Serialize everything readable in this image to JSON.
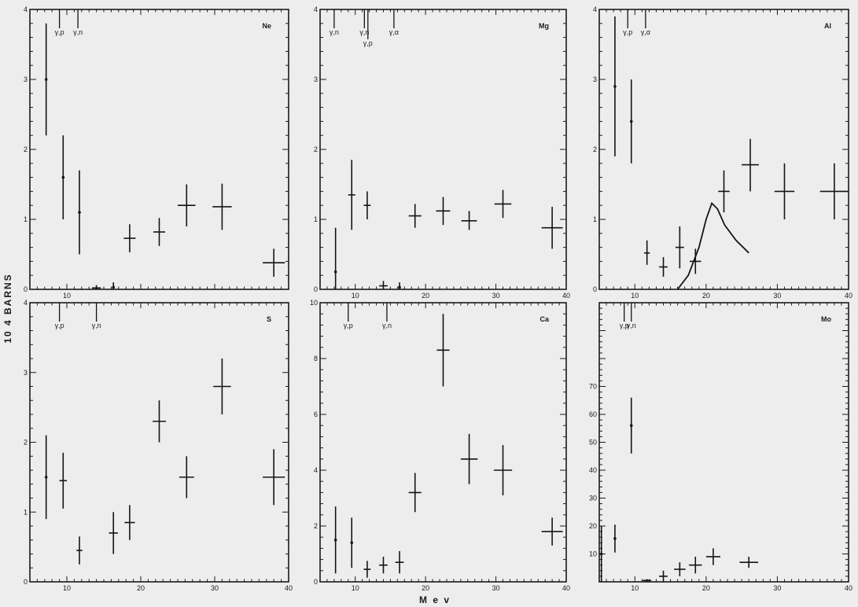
{
  "ylabel": "10 4 BARNS",
  "xlabel": "M e v",
  "chart_data": [
    {
      "type": "scatter",
      "element": "Ne",
      "xlim": [
        5,
        40
      ],
      "ylim": [
        0,
        4
      ],
      "yticks": [
        0,
        1,
        2,
        3,
        4
      ],
      "yticklabels": [
        "0",
        "1",
        "2",
        "3",
        "4"
      ],
      "xticks": [
        10,
        20,
        30,
        40
      ],
      "xticklabels": [
        "10",
        "",
        "",
        ""
      ],
      "points": [
        {
          "x": 7.2,
          "y": 3.0,
          "lo": 2.2,
          "hi": 3.8,
          "hw": 0
        },
        {
          "x": 9.5,
          "y": 1.6,
          "lo": 1.0,
          "hi": 2.2,
          "hw": 0
        },
        {
          "x": 11.7,
          "y": 1.1,
          "lo": 0.5,
          "hi": 1.7,
          "hw": 0
        },
        {
          "x": 14.0,
          "y": 0.02,
          "lo": 0.0,
          "hi": 0.06,
          "hw": 0.6
        },
        {
          "x": 16.3,
          "y": 0.03,
          "lo": 0.0,
          "hi": 0.1,
          "hw": 0
        },
        {
          "x": 18.5,
          "y": 0.73,
          "lo": 0.53,
          "hi": 0.93,
          "hw": 0.8
        },
        {
          "x": 22.5,
          "y": 0.82,
          "lo": 0.62,
          "hi": 1.02,
          "hw": 0.8
        },
        {
          "x": 26.2,
          "y": 1.2,
          "lo": 0.9,
          "hi": 1.5,
          "hw": 1.2
        },
        {
          "x": 31.0,
          "y": 1.18,
          "lo": 0.85,
          "hi": 1.51,
          "hw": 1.3
        },
        {
          "x": 38.0,
          "y": 0.38,
          "lo": 0.18,
          "hi": 0.58,
          "hw": 1.5
        }
      ],
      "thresholds": [
        {
          "x": 9.0,
          "label": "γ,p"
        },
        {
          "x": 11.5,
          "label": "γ,n"
        }
      ],
      "curve": []
    },
    {
      "type": "scatter",
      "element": "Mg",
      "xlim": [
        5,
        40
      ],
      "ylim": [
        0,
        4
      ],
      "yticks": [
        0,
        1,
        2,
        3,
        4
      ],
      "yticklabels": [
        "0",
        "1",
        "2",
        "3",
        "4"
      ],
      "xticks": [
        10,
        20,
        30,
        40
      ],
      "xticklabels": [
        "10",
        "20",
        "30",
        "40"
      ],
      "points": [
        {
          "x": 7.2,
          "y": 0.25,
          "lo": 0.0,
          "hi": 0.88,
          "hw": 0
        },
        {
          "x": 9.5,
          "y": 1.35,
          "lo": 0.85,
          "hi": 1.85,
          "hw": 0.5
        },
        {
          "x": 11.7,
          "y": 1.2,
          "lo": 1.0,
          "hi": 1.4,
          "hw": 0.5
        },
        {
          "x": 14.0,
          "y": 0.05,
          "lo": 0.0,
          "hi": 0.12,
          "hw": 0.6
        },
        {
          "x": 16.3,
          "y": 0.03,
          "lo": 0.0,
          "hi": 0.1,
          "hw": 0
        },
        {
          "x": 18.5,
          "y": 1.05,
          "lo": 0.88,
          "hi": 1.22,
          "hw": 0.9
        },
        {
          "x": 22.5,
          "y": 1.12,
          "lo": 0.92,
          "hi": 1.32,
          "hw": 1.0
        },
        {
          "x": 26.2,
          "y": 0.98,
          "lo": 0.85,
          "hi": 1.12,
          "hw": 1.1
        },
        {
          "x": 31.0,
          "y": 1.22,
          "lo": 1.02,
          "hi": 1.42,
          "hw": 1.2
        },
        {
          "x": 38.0,
          "y": 0.88,
          "lo": 0.58,
          "hi": 1.18,
          "hw": 1.5
        }
      ],
      "thresholds": [
        {
          "x": 7.0,
          "label": "γ,n"
        },
        {
          "x": 11.3,
          "label": "γ,n"
        },
        {
          "x": 11.8,
          "label": "γ,p"
        },
        {
          "x": 15.5,
          "label": "γ,α"
        }
      ],
      "curve": []
    },
    {
      "type": "scatter",
      "element": "Al",
      "xlim": [
        5,
        40
      ],
      "ylim": [
        0,
        4
      ],
      "yticks": [
        0,
        1,
        2,
        3,
        4
      ],
      "yticklabels": [
        "0",
        "1",
        "2",
        "3",
        "4"
      ],
      "xticks": [
        10,
        20,
        30,
        40
      ],
      "xticklabels": [
        "10",
        "20",
        "30",
        "40"
      ],
      "points": [
        {
          "x": 7.2,
          "y": 2.9,
          "lo": 1.9,
          "hi": 3.9,
          "hw": 0
        },
        {
          "x": 9.5,
          "y": 2.4,
          "lo": 1.8,
          "hi": 3.0,
          "hw": 0
        },
        {
          "x": 11.7,
          "y": 0.52,
          "lo": 0.35,
          "hi": 0.7,
          "hw": 0.4
        },
        {
          "x": 14.0,
          "y": 0.32,
          "lo": 0.18,
          "hi": 0.46,
          "hw": 0.6
        },
        {
          "x": 16.3,
          "y": 0.6,
          "lo": 0.3,
          "hi": 0.9,
          "hw": 0.6
        },
        {
          "x": 18.5,
          "y": 0.4,
          "lo": 0.22,
          "hi": 0.58,
          "hw": 0.8
        },
        {
          "x": 22.5,
          "y": 1.4,
          "lo": 1.1,
          "hi": 1.7,
          "hw": 0.8
        },
        {
          "x": 26.2,
          "y": 1.78,
          "lo": 1.4,
          "hi": 2.15,
          "hw": 1.2
        },
        {
          "x": 31.0,
          "y": 1.4,
          "lo": 1.0,
          "hi": 1.8,
          "hw": 1.4
        },
        {
          "x": 38.0,
          "y": 1.4,
          "lo": 1.0,
          "hi": 1.8,
          "hw": 2.0
        }
      ],
      "thresholds": [
        {
          "x": 9.0,
          "label": "γ,p"
        },
        {
          "x": 11.5,
          "label": "γ,α"
        }
      ],
      "curve": [
        [
          16.0,
          0.0
        ],
        [
          17.5,
          0.2
        ],
        [
          19.0,
          0.6
        ],
        [
          20.0,
          1.0
        ],
        [
          20.8,
          1.23
        ],
        [
          21.6,
          1.15
        ],
        [
          22.6,
          0.92
        ],
        [
          24.2,
          0.7
        ],
        [
          26.0,
          0.52
        ]
      ]
    },
    {
      "type": "scatter",
      "element": "S",
      "xlim": [
        5,
        40
      ],
      "ylim": [
        0,
        4
      ],
      "yticks": [
        0,
        1,
        2,
        3,
        4
      ],
      "yticklabels": [
        "0",
        "1",
        "2",
        "3",
        "4"
      ],
      "xticks": [
        10,
        20,
        30,
        40
      ],
      "xticklabels": [
        "10",
        "20",
        "30",
        "40"
      ],
      "points": [
        {
          "x": 7.2,
          "y": 1.5,
          "lo": 0.9,
          "hi": 2.1,
          "hw": 0
        },
        {
          "x": 9.5,
          "y": 1.45,
          "lo": 1.05,
          "hi": 1.85,
          "hw": 0.5
        },
        {
          "x": 11.7,
          "y": 0.45,
          "lo": 0.25,
          "hi": 0.65,
          "hw": 0.4
        },
        {
          "x": 16.3,
          "y": 0.7,
          "lo": 0.4,
          "hi": 1.0,
          "hw": 0.6
        },
        {
          "x": 18.5,
          "y": 0.85,
          "lo": 0.6,
          "hi": 1.1,
          "hw": 0.7
        },
        {
          "x": 22.5,
          "y": 2.3,
          "lo": 2.0,
          "hi": 2.6,
          "hw": 0.9
        },
        {
          "x": 26.2,
          "y": 1.5,
          "lo": 1.2,
          "hi": 1.8,
          "hw": 1.0
        },
        {
          "x": 31.0,
          "y": 2.8,
          "lo": 2.4,
          "hi": 3.2,
          "hw": 1.2
        },
        {
          "x": 38.0,
          "y": 1.5,
          "lo": 1.1,
          "hi": 1.9,
          "hw": 1.5
        }
      ],
      "thresholds": [
        {
          "x": 9.0,
          "label": "γ,p"
        },
        {
          "x": 14.0,
          "label": "γ,n"
        }
      ],
      "curve": []
    },
    {
      "type": "scatter",
      "element": "Ca",
      "xlim": [
        5,
        40
      ],
      "ylim": [
        0,
        10
      ],
      "yticks": [
        0,
        2,
        4,
        6,
        8,
        10
      ],
      "yticklabels": [
        "0",
        "2",
        "4",
        "6",
        "8",
        "10"
      ],
      "xticks": [
        10,
        20,
        30,
        40
      ],
      "xticklabels": [
        "10",
        "20",
        "30",
        "40"
      ],
      "points": [
        {
          "x": 7.2,
          "y": 1.5,
          "lo": 0.3,
          "hi": 2.7,
          "hw": 0
        },
        {
          "x": 9.5,
          "y": 1.4,
          "lo": 0.5,
          "hi": 2.3,
          "hw": 0
        },
        {
          "x": 11.7,
          "y": 0.45,
          "lo": 0.15,
          "hi": 0.75,
          "hw": 0.5
        },
        {
          "x": 14.0,
          "y": 0.6,
          "lo": 0.3,
          "hi": 0.9,
          "hw": 0.6
        },
        {
          "x": 16.3,
          "y": 0.7,
          "lo": 0.3,
          "hi": 1.1,
          "hw": 0.6
        },
        {
          "x": 18.5,
          "y": 3.2,
          "lo": 2.5,
          "hi": 3.9,
          "hw": 0.9
        },
        {
          "x": 22.5,
          "y": 8.3,
          "lo": 7.0,
          "hi": 9.6,
          "hw": 0.9
        },
        {
          "x": 26.2,
          "y": 4.4,
          "lo": 3.5,
          "hi": 5.3,
          "hw": 1.2
        },
        {
          "x": 31.0,
          "y": 4.0,
          "lo": 3.1,
          "hi": 4.9,
          "hw": 1.3
        },
        {
          "x": 38.0,
          "y": 1.8,
          "lo": 1.3,
          "hi": 2.3,
          "hw": 1.5
        }
      ],
      "thresholds": [
        {
          "x": 9.0,
          "label": "γ,p"
        },
        {
          "x": 14.5,
          "label": "γ,n"
        }
      ],
      "curve": []
    },
    {
      "type": "scatter",
      "element": "Mo",
      "xlim": [
        5,
        40
      ],
      "ylim": [
        0,
        100
      ],
      "yticks": [
        0,
        10,
        20,
        30,
        40,
        50,
        60,
        70,
        80,
        90,
        100
      ],
      "yticklabels": [
        "",
        "10",
        "20",
        "30",
        "40",
        "50",
        "60",
        "70",
        "",
        "",
        ""
      ],
      "xticks": [
        10,
        20,
        30,
        40
      ],
      "xticklabels": [
        "10",
        "20",
        "30",
        "40"
      ],
      "points": [
        {
          "x": 5.3,
          "y": 10,
          "lo": 0,
          "hi": 20,
          "hw": 0
        },
        {
          "x": 7.2,
          "y": 15.5,
          "lo": 10.5,
          "hi": 20.5,
          "hw": 0
        },
        {
          "x": 9.5,
          "y": 56,
          "lo": 46,
          "hi": 66,
          "hw": 0
        },
        {
          "x": 11.7,
          "y": 0.5,
          "lo": 0,
          "hi": 1,
          "hw": 0.6
        },
        {
          "x": 14.0,
          "y": 2,
          "lo": 0,
          "hi": 4,
          "hw": 0.6
        },
        {
          "x": 16.3,
          "y": 4.5,
          "lo": 2,
          "hi": 7,
          "hw": 0.8
        },
        {
          "x": 18.5,
          "y": 6,
          "lo": 3,
          "hi": 9,
          "hw": 0.9
        },
        {
          "x": 21.0,
          "y": 9,
          "lo": 6,
          "hi": 12,
          "hw": 1.0
        },
        {
          "x": 26.0,
          "y": 7,
          "lo": 5,
          "hi": 9,
          "hw": 1.3
        }
      ],
      "thresholds": [
        {
          "x": 8.5,
          "label": "γ,p"
        },
        {
          "x": 9.5,
          "label": "γ,n"
        }
      ],
      "curve": []
    }
  ]
}
